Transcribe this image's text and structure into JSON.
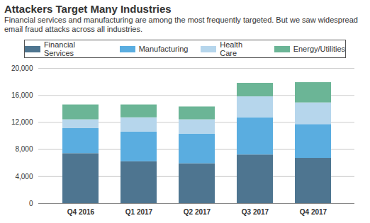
{
  "chart_data": {
    "type": "bar",
    "title": "Attackers Target Many Industries",
    "subtitle": "Financial services and manufacturing are among the most frequently targeted. But we saw widespread email fraud attacks across all industries.",
    "categories": [
      "Q4 2016",
      "Q1 2017",
      "Q2 2017",
      "Q3 2017",
      "Q4 2017"
    ],
    "series": [
      {
        "name": "Financial Services",
        "color": "#4e7590",
        "values": [
          7400,
          6200,
          5900,
          7200,
          6700
        ]
      },
      {
        "name": "Manufacturing",
        "color": "#5aade0",
        "values": [
          3700,
          4400,
          4400,
          5500,
          5000
        ]
      },
      {
        "name": "Health Care",
        "color": "#b6d6ec",
        "values": [
          1300,
          2100,
          2100,
          3100,
          3200
        ]
      },
      {
        "name": "Energy/Utilities",
        "color": "#6bb596",
        "values": [
          2200,
          1900,
          1900,
          2000,
          3000
        ]
      }
    ],
    "stacked": true,
    "legend": "top",
    "grid": true,
    "ylim": [
      0,
      20000
    ],
    "yticks": [
      0,
      {
        "value": 4000,
        "label": "4,000"
      },
      {
        "value": 8000,
        "label": "8,000"
      },
      {
        "value": 12000,
        "label": "12,000"
      },
      {
        "value": 16000,
        "label": "16,000"
      },
      {
        "value": 20000,
        "label": "20,000"
      }
    ]
  }
}
